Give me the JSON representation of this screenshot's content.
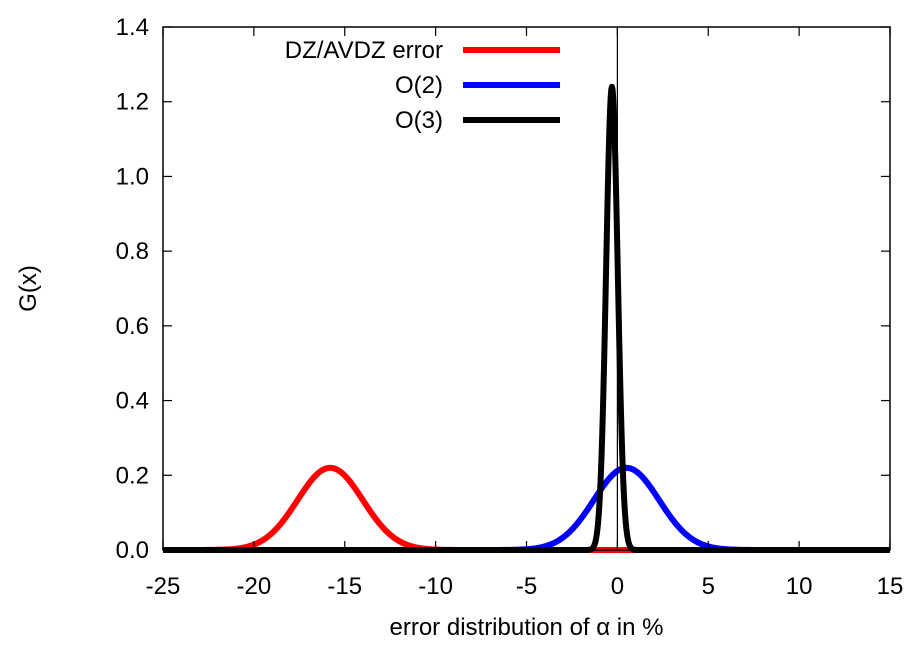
{
  "chart_data": {
    "type": "line",
    "xlabel": "error distribution of α in %",
    "ylabel": "G(x)",
    "xlim": [
      -25,
      15
    ],
    "ylim": [
      0,
      1.4
    ],
    "x_ticks": [
      "-25",
      "-20",
      "-15",
      "-10",
      "-5",
      "0",
      "5",
      "10",
      "15"
    ],
    "y_ticks": [
      "0.0",
      "0.2",
      "0.4",
      "0.6",
      "0.8",
      "1.0",
      "1.2",
      "1.4"
    ],
    "grid": false,
    "legend_position": "top-right",
    "reference_line_x": 0,
    "series": [
      {
        "name": "DZ/AVDZ error",
        "color": "#ff0000",
        "distribution": "gaussian",
        "mean": -15.8,
        "std": 1.8,
        "peak": 0.22
      },
      {
        "name": "O(2)",
        "color": "#0000ff",
        "distribution": "gaussian",
        "mean": 0.5,
        "std": 1.8,
        "peak": 0.22
      },
      {
        "name": "O(3)",
        "color": "#000000",
        "distribution": "gaussian",
        "mean": -0.3,
        "std": 0.32,
        "peak": 1.24
      }
    ]
  }
}
